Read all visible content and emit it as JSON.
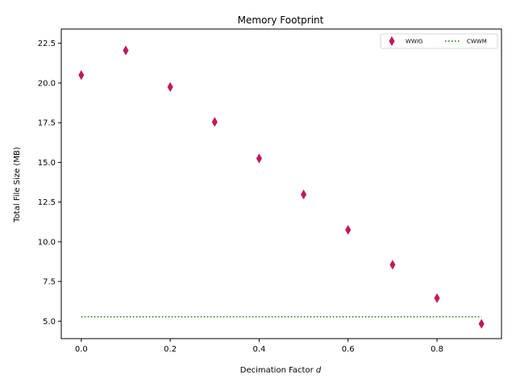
{
  "chart_data": {
    "type": "scatter",
    "title": "Memory Footprint",
    "xlabel": "Decimation Factor",
    "xlabel_symbol": "d",
    "ylabel": "Total File Size (MB)",
    "xlim": [
      -0.045,
      0.945
    ],
    "ylim": [
      3.9,
      23.4
    ],
    "xticks": [
      0.0,
      0.2,
      0.4,
      0.6,
      0.8
    ],
    "xtick_labels": [
      "0.0",
      "0.2",
      "0.4",
      "0.6",
      "0.8"
    ],
    "yticks": [
      5.0,
      7.5,
      10.0,
      12.5,
      15.0,
      17.5,
      20.0,
      22.5
    ],
    "ytick_labels": [
      "5.0",
      "7.5",
      "10.0",
      "12.5",
      "15.0",
      "17.5",
      "20.0",
      "22.5"
    ],
    "grid": false,
    "legend_position": "top-right",
    "series": [
      {
        "name": "WWIG",
        "kind": "scatter",
        "marker": "thin-diamond",
        "color": "#c2185b",
        "x": [
          0.0,
          0.1,
          0.2,
          0.3,
          0.4,
          0.5,
          0.6,
          0.7,
          0.8,
          0.9
        ],
        "y": [
          20.5,
          22.05,
          19.75,
          17.55,
          15.25,
          12.98,
          10.75,
          8.55,
          6.45,
          4.83
        ]
      },
      {
        "name": "CWWM",
        "kind": "line",
        "linestyle": "dotted",
        "color": "#008000",
        "x": [
          0.0,
          0.9
        ],
        "y": [
          5.28,
          5.28
        ]
      }
    ]
  }
}
